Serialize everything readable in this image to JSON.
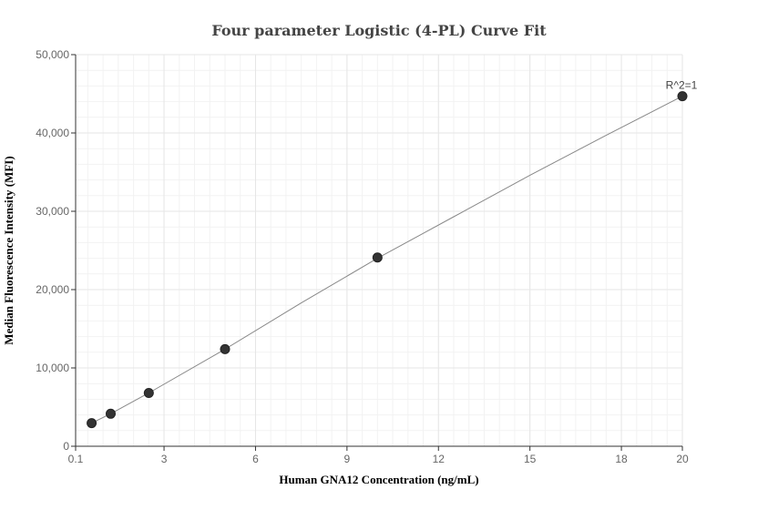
{
  "chart_data": {
    "type": "scatter",
    "title": "Four parameter Logistic (4-PL) Curve Fit",
    "xlabel": "Human GNA12 Concentration (ng/mL)",
    "ylabel": "Median Fluorescence Intensity (MFI)",
    "xlim": [
      0.1,
      20
    ],
    "ylim": [
      0,
      50000
    ],
    "x_ticks": [
      0.1,
      3,
      6,
      9,
      12,
      15,
      18,
      20
    ],
    "x_tick_labels": [
      "0.1",
      "3",
      "6",
      "9",
      "12",
      "15",
      "18",
      "20"
    ],
    "y_ticks": [
      0,
      10000,
      20000,
      30000,
      40000,
      50000
    ],
    "y_tick_labels": [
      "0",
      "10,000",
      "20,000",
      "30,000",
      "40,000",
      "50,000"
    ],
    "grid": true,
    "points": [
      {
        "x": 0.625,
        "y": 2950
      },
      {
        "x": 1.25,
        "y": 4150
      },
      {
        "x": 2.5,
        "y": 6800
      },
      {
        "x": 5,
        "y": 12400
      },
      {
        "x": 10,
        "y": 24100
      },
      {
        "x": 20,
        "y": 44700
      }
    ],
    "fit_curve": {
      "x": [
        0.625,
        1.25,
        2.5,
        5,
        7.5,
        10,
        12.5,
        15,
        17.5,
        20
      ],
      "y": [
        2950,
        4150,
        6800,
        12400,
        18300,
        24000,
        29300,
        34600,
        39700,
        44700
      ]
    },
    "annotation": "R^2=1",
    "colors": {
      "points": "#333333",
      "fit_line": "#888888",
      "grid": "#e6e6e6"
    }
  }
}
